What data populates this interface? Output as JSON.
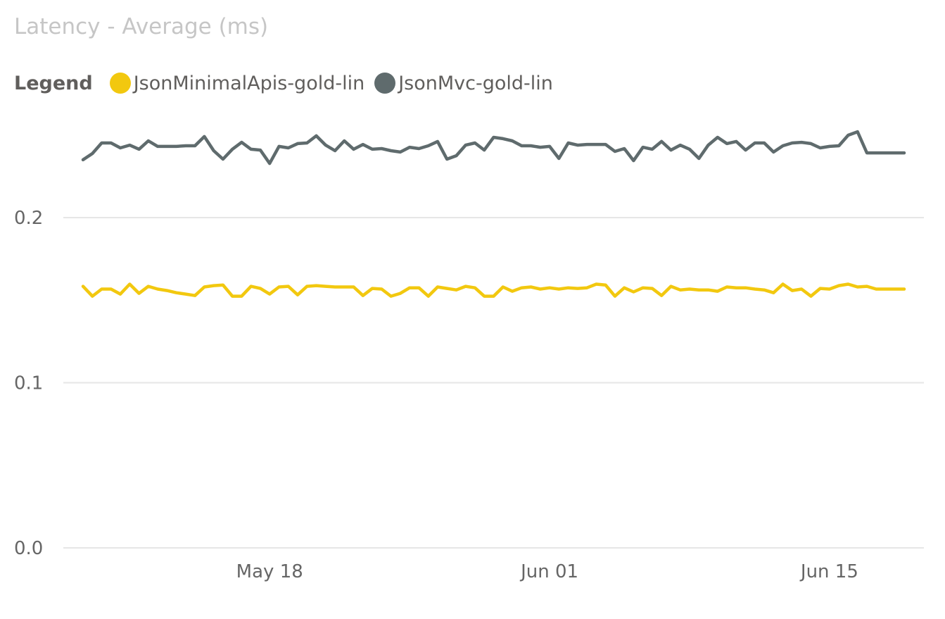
{
  "chart_data": {
    "type": "line",
    "title": "Latency - Average (ms)",
    "legend_title": "Legend",
    "legend_placement": "top-left",
    "ylim": [
      0,
      0.25
    ],
    "y_ticks": [
      {
        "v": 0.0,
        "label": "0.0"
      },
      {
        "v": 0.1,
        "label": "0.1"
      },
      {
        "v": 0.2,
        "label": "0.2"
      }
    ],
    "x_ticks": [
      {
        "x": 10,
        "label": "May 18"
      },
      {
        "x": 25,
        "label": "Jun 01"
      },
      {
        "x": 40,
        "label": "Jun 15"
      }
    ],
    "x_range": [
      0,
      44
    ],
    "grid": true,
    "series": [
      {
        "name": "JsonMinimalApis-gold-lin",
        "color": "#f2c80f",
        "x": [
          0,
          0.5,
          1,
          1.5,
          2,
          2.5,
          3,
          3.5,
          4,
          4.5,
          5,
          5.5,
          6,
          6.5,
          7,
          7.5,
          8,
          8.5,
          9,
          9.5,
          10,
          10.5,
          11,
          11.5,
          12,
          12.5,
          13,
          13.5,
          14,
          14.5,
          15,
          15.5,
          16,
          16.5,
          17,
          17.5,
          18,
          18.5,
          19,
          19.5,
          20,
          20.5,
          21,
          21.5,
          22,
          22.5,
          23,
          23.5,
          24,
          24.5,
          25,
          25.5,
          26,
          26.5,
          27,
          27.5,
          28,
          28.5,
          29,
          29.5,
          30,
          30.5,
          31,
          31.5,
          32,
          32.5,
          33,
          33.5,
          34,
          34.5,
          35,
          35.5,
          36,
          36.5,
          37,
          37.5,
          38,
          38.5,
          39,
          39.5,
          40,
          40.5,
          41,
          41.5,
          42,
          42.5,
          43,
          43.5,
          44
        ],
        "values": [
          0.1584,
          0.1524,
          0.1567,
          0.1567,
          0.1537,
          0.1597,
          0.1541,
          0.1584,
          0.1567,
          0.1558,
          0.1545,
          0.1537,
          0.1528,
          0.158,
          0.1588,
          0.1592,
          0.1524,
          0.1524,
          0.1584,
          0.1571,
          0.1537,
          0.158,
          0.1584,
          0.1532,
          0.1584,
          0.1588,
          0.1584,
          0.158,
          0.158,
          0.158,
          0.1528,
          0.1571,
          0.1567,
          0.1524,
          0.1541,
          0.1575,
          0.1575,
          0.1524,
          0.158,
          0.1571,
          0.1562,
          0.1584,
          0.1575,
          0.1524,
          0.1524,
          0.158,
          0.1554,
          0.1575,
          0.158,
          0.1567,
          0.1575,
          0.1567,
          0.1575,
          0.1571,
          0.1575,
          0.1597,
          0.1592,
          0.1524,
          0.1575,
          0.155,
          0.1575,
          0.1571,
          0.1528,
          0.1584,
          0.1562,
          0.1567,
          0.1562,
          0.1562,
          0.1554,
          0.158,
          0.1575,
          0.1575,
          0.1567,
          0.1562,
          0.1545,
          0.1597,
          0.1558,
          0.1567,
          0.1524,
          0.1571,
          0.1567,
          0.1588,
          0.1597,
          0.158,
          0.1584,
          0.1567,
          0.1567,
          0.1567,
          0.1567
        ]
      },
      {
        "name": "JsonMvc-gold-lin",
        "color": "#5f6b6d",
        "x": [
          0,
          0.5,
          1,
          1.5,
          2,
          2.5,
          3,
          3.5,
          4,
          4.5,
          5,
          5.5,
          6,
          6.5,
          7,
          7.5,
          8,
          8.5,
          9,
          9.5,
          10,
          10.5,
          11,
          11.5,
          12,
          12.5,
          13,
          13.5,
          14,
          14.5,
          15,
          15.5,
          16,
          16.5,
          17,
          17.5,
          18,
          18.5,
          19,
          19.5,
          20,
          20.5,
          21,
          21.5,
          22,
          22.5,
          23,
          23.5,
          24,
          24.5,
          25,
          25.5,
          26,
          26.5,
          27,
          27.5,
          28,
          28.5,
          29,
          29.5,
          30,
          30.5,
          31,
          31.5,
          32,
          32.5,
          33,
          33.5,
          34,
          34.5,
          35,
          35.5,
          36,
          36.5,
          37,
          37.5,
          38,
          38.5,
          39,
          39.5,
          40,
          40.5,
          41,
          41.5,
          42,
          42.5,
          43,
          43.5,
          44
        ],
        "values": [
          0.235,
          0.2388,
          0.2452,
          0.2452,
          0.2422,
          0.2439,
          0.2414,
          0.2465,
          0.2431,
          0.2431,
          0.2431,
          0.2435,
          0.2435,
          0.2491,
          0.2405,
          0.2354,
          0.2414,
          0.2456,
          0.2414,
          0.2409,
          0.2328,
          0.2431,
          0.2422,
          0.2448,
          0.2452,
          0.2495,
          0.2439,
          0.2405,
          0.2465,
          0.2414,
          0.2443,
          0.2414,
          0.2418,
          0.2405,
          0.2397,
          0.2426,
          0.2418,
          0.2435,
          0.2461,
          0.2354,
          0.2375,
          0.2439,
          0.2452,
          0.2409,
          0.2486,
          0.2478,
          0.2465,
          0.2435,
          0.2435,
          0.2426,
          0.2431,
          0.2358,
          0.2452,
          0.2439,
          0.2443,
          0.2443,
          0.2443,
          0.2401,
          0.2418,
          0.2345,
          0.2426,
          0.2414,
          0.2461,
          0.2409,
          0.2439,
          0.2414,
          0.2358,
          0.2439,
          0.2486,
          0.2448,
          0.2461,
          0.2409,
          0.2452,
          0.2452,
          0.2397,
          0.2435,
          0.2452,
          0.2456,
          0.2448,
          0.2422,
          0.2431,
          0.2435,
          0.2499,
          0.252,
          0.2392,
          0.2392,
          0.2392,
          0.2392,
          0.2392
        ]
      }
    ]
  }
}
